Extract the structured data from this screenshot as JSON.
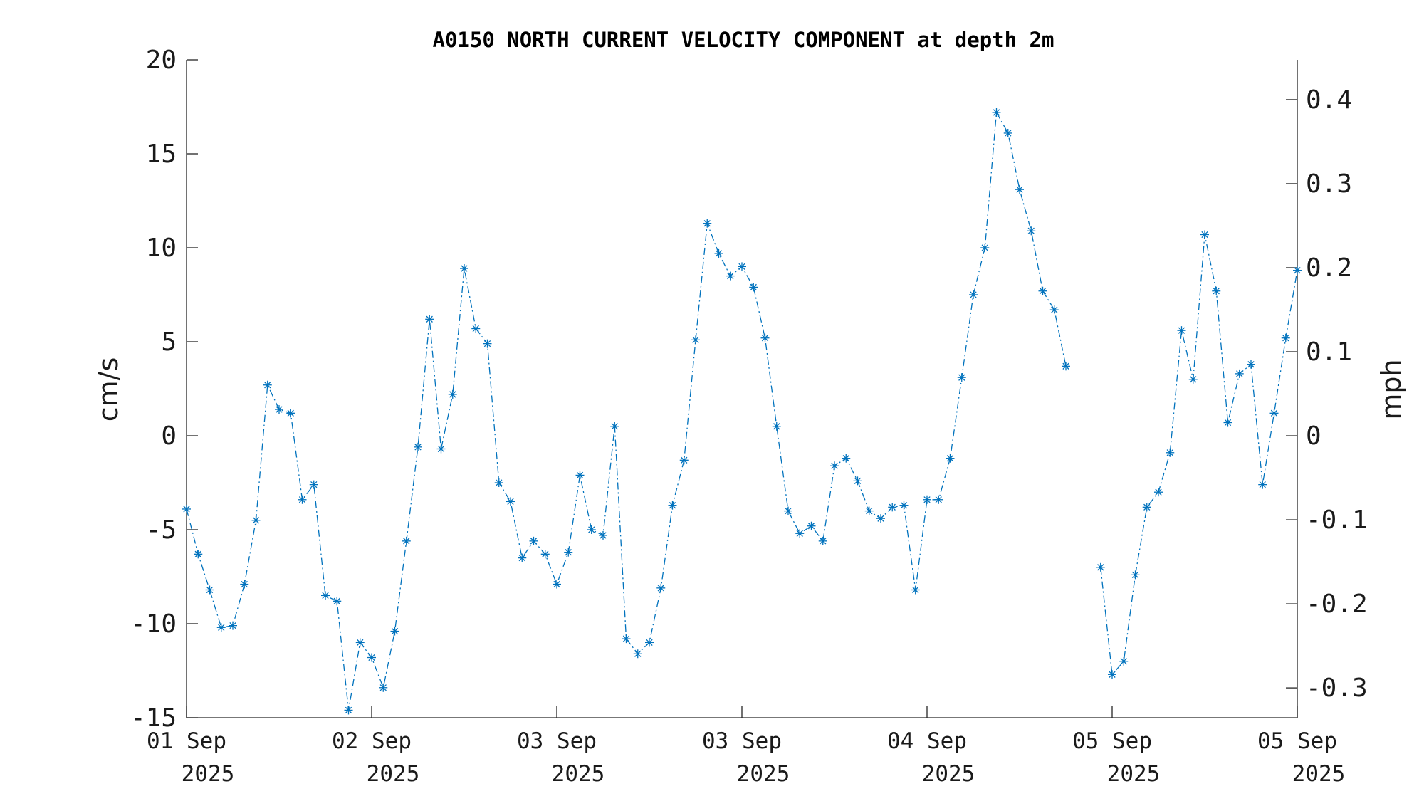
{
  "chart_data": {
    "type": "line",
    "title": "A0150 NORTH CURRENT VELOCITY COMPONENT at depth 2m",
    "ylabel": "cm/s",
    "ylabel_right": "mph",
    "ylim": [
      -15,
      20
    ],
    "yticks": [
      20,
      15,
      10,
      5,
      0,
      -5,
      -10,
      -15
    ],
    "ylim_right": [
      -0.3355,
      0.4474
    ],
    "yticks_right": [
      0.4,
      0.3,
      0.2,
      0.1,
      0,
      -0.1,
      -0.2,
      -0.3
    ],
    "xlim": [
      0,
      96
    ],
    "xticks": [
      {
        "x": 0,
        "line1": "01 Sep",
        "line2": "2025"
      },
      {
        "x": 16,
        "line1": "02 Sep",
        "line2": "2025"
      },
      {
        "x": 32,
        "line1": "03 Sep",
        "line2": "2025"
      },
      {
        "x": 48,
        "line1": "03 Sep",
        "line2": "2025"
      },
      {
        "x": 64,
        "line1": "04 Sep",
        "line2": "2025"
      },
      {
        "x": 80,
        "line1": "05 Sep",
        "line2": "2025"
      },
      {
        "x": 96,
        "line1": "05 Sep",
        "line2": "2025"
      }
    ],
    "grid": false,
    "line_style": "dash-dot",
    "marker": "asterisk",
    "color": "#0072bd",
    "series": [
      {
        "x": [
          0,
          1,
          2,
          3,
          4,
          5,
          6,
          7,
          8,
          9,
          10,
          11,
          12,
          13,
          14,
          15,
          16,
          17,
          18,
          19,
          20,
          21,
          22,
          23,
          24,
          25,
          26,
          27,
          28,
          29,
          30,
          31,
          32,
          33,
          34,
          35,
          36,
          37,
          38,
          39,
          40,
          41,
          42,
          43,
          44,
          45,
          46,
          47,
          48,
          49,
          50,
          51,
          52,
          53,
          54,
          55,
          56,
          57,
          58,
          59,
          60,
          61,
          62,
          63,
          64,
          65,
          66,
          67,
          68,
          69,
          70,
          71,
          72,
          73,
          74,
          75,
          76,
          77,
          78,
          79,
          80,
          81,
          82,
          83,
          84,
          85,
          86,
          87,
          88,
          89,
          90,
          91,
          92,
          93,
          94,
          95,
          96
        ],
        "values": [
          -3.9,
          -6.3,
          -8.2,
          -10.2,
          -10.1,
          -7.9,
          -4.5,
          2.7,
          1.4,
          1.2,
          -3.4,
          -2.6,
          -8.5,
          -8.8,
          -14.6,
          -11.0,
          -11.8,
          -13.4,
          -10.4,
          -5.6,
          -0.6,
          6.2,
          -0.7,
          2.2,
          8.9,
          5.7,
          4.9,
          -2.5,
          -3.5,
          -6.5,
          -5.6,
          -6.3,
          -7.9,
          -6.2,
          -2.1,
          -5.0,
          -5.3,
          0.5,
          -10.8,
          -11.6,
          -11.0,
          -8.1,
          -3.7,
          -1.3,
          5.1,
          11.3,
          9.7,
          8.5,
          9.0,
          7.9,
          5.2,
          0.5,
          -4.0,
          -5.2,
          -4.8,
          -5.6,
          -1.6,
          -1.2,
          -2.4,
          -4.0,
          -4.4,
          -3.8,
          -3.7,
          -8.2,
          -3.4,
          -3.4,
          -1.2,
          3.1,
          7.5,
          10.0,
          17.2,
          16.1,
          13.1,
          10.9,
          7.7,
          6.7,
          3.7,
          null,
          null,
          -7.0,
          -12.7,
          -12.0,
          -7.4,
          -3.8,
          -3.0,
          -0.9,
          5.6,
          3.0,
          10.7,
          7.7,
          0.7,
          3.3,
          3.8,
          -2.6,
          1.2,
          5.2,
          8.8
        ]
      }
    ]
  }
}
